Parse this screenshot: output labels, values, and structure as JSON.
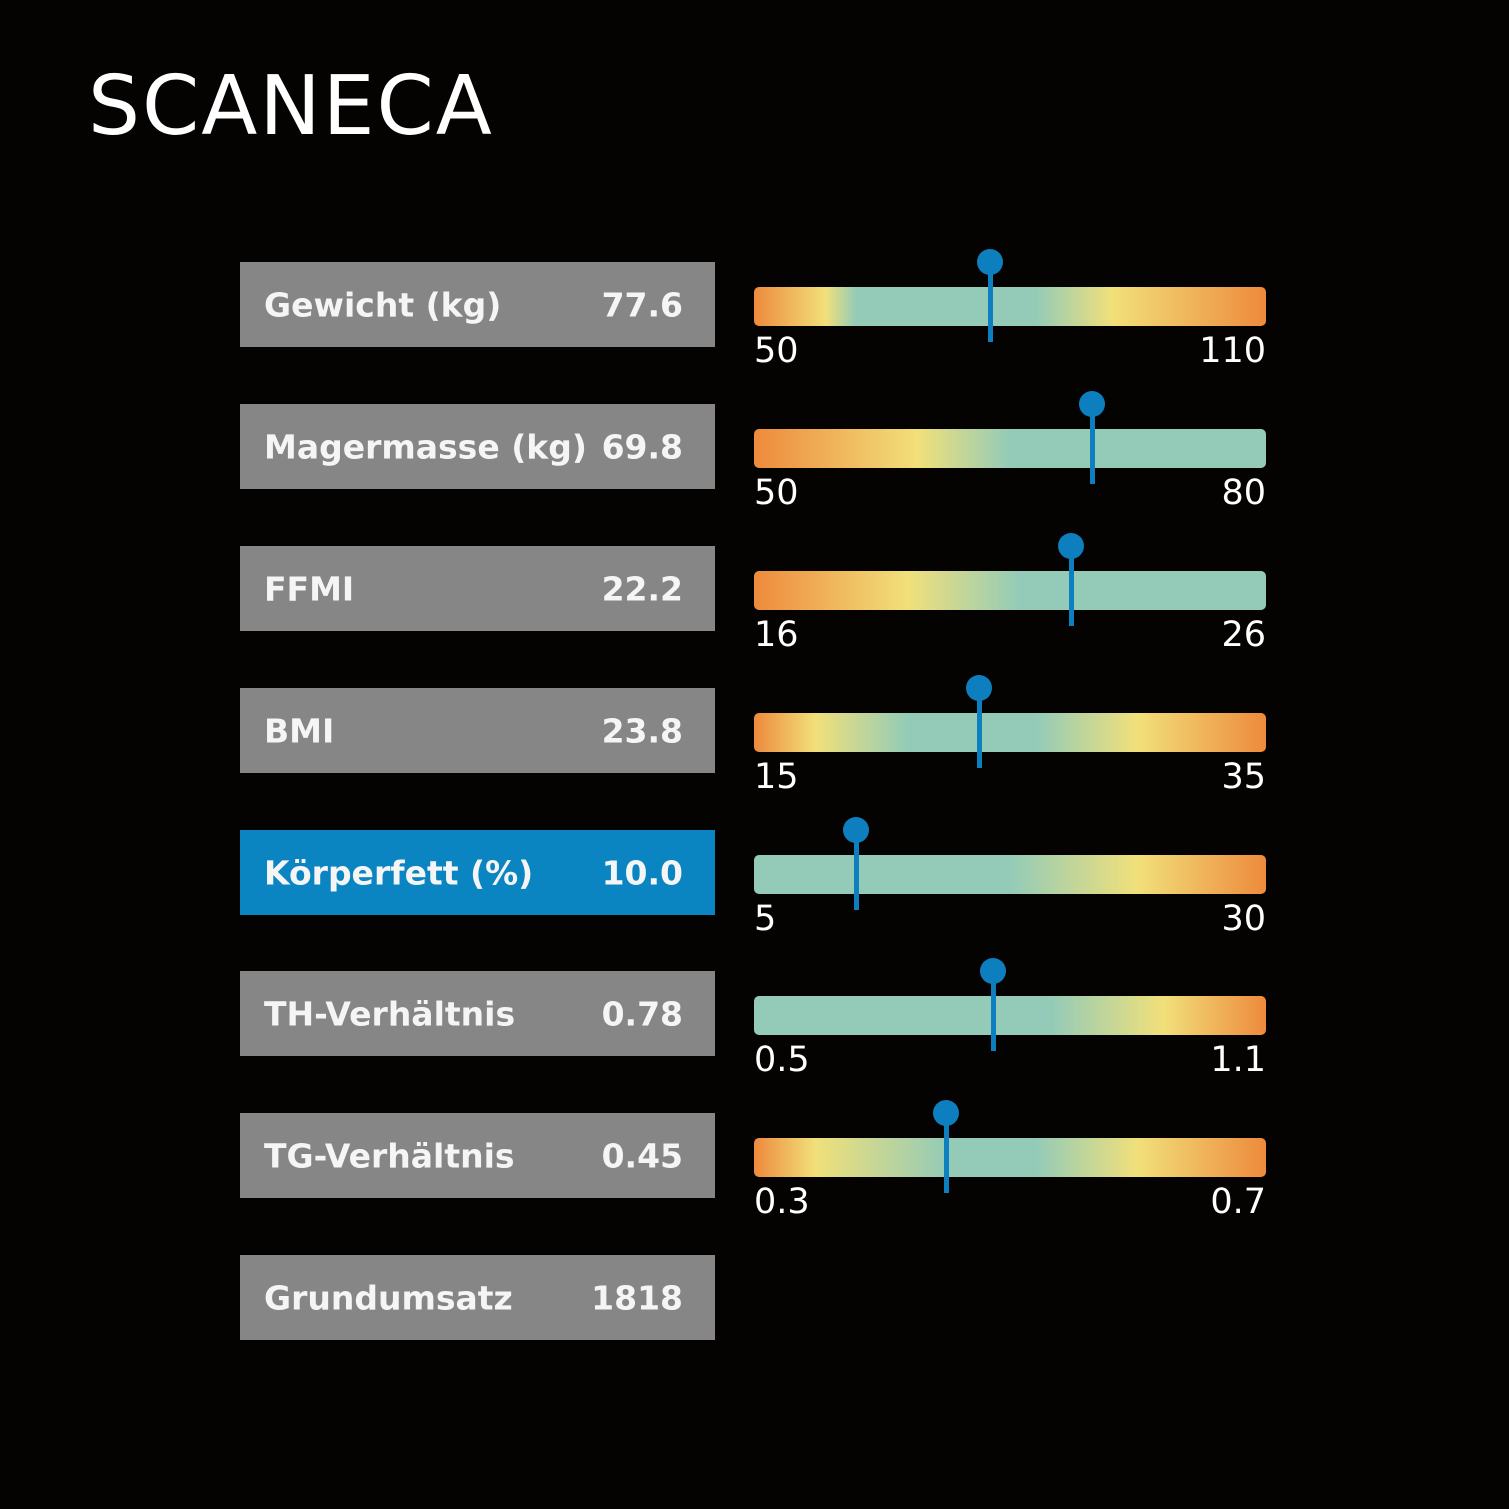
{
  "brand": {
    "logo_text": "SCANECA"
  },
  "colors": {
    "background": "#050302",
    "box_gray": "#878686",
    "box_highlight": "#0b84c2",
    "pin": "#0d7fbf",
    "orange": "#ee8a3c",
    "yellow": "#f1e07a",
    "teal": "#93cbb8"
  },
  "metrics": [
    {
      "label": "Gewicht (kg)",
      "value": "77.6",
      "highlight": false,
      "gauge": {
        "min": 50,
        "max": 110,
        "min_label": "50",
        "max_label": "110",
        "marker": 77.6,
        "stops": [
          [
            0,
            "orange"
          ],
          [
            0.14,
            "yellow"
          ],
          [
            0.2,
            "teal"
          ],
          [
            0.55,
            "teal"
          ],
          [
            0.7,
            "yellow"
          ],
          [
            1,
            "orange"
          ]
        ]
      }
    },
    {
      "label": "Magermasse (kg)",
      "value": "69.8",
      "highlight": false,
      "gauge": {
        "min": 50,
        "max": 80,
        "min_label": "50",
        "max_label": "80",
        "marker": 69.8,
        "stops": [
          [
            0,
            "orange"
          ],
          [
            0.32,
            "yellow"
          ],
          [
            0.5,
            "teal"
          ],
          [
            1,
            "teal"
          ]
        ]
      }
    },
    {
      "label": "FFMI",
      "value": "22.2",
      "highlight": false,
      "gauge": {
        "min": 16,
        "max": 26,
        "min_label": "16",
        "max_label": "26",
        "marker": 22.2,
        "stops": [
          [
            0,
            "orange"
          ],
          [
            0.3,
            "yellow"
          ],
          [
            0.52,
            "teal"
          ],
          [
            1,
            "teal"
          ]
        ]
      }
    },
    {
      "label": "BMI",
      "value": "23.8",
      "highlight": false,
      "gauge": {
        "min": 15,
        "max": 35,
        "min_label": "15",
        "max_label": "35",
        "marker": 23.8,
        "stops": [
          [
            0,
            "orange"
          ],
          [
            0.12,
            "yellow"
          ],
          [
            0.3,
            "teal"
          ],
          [
            0.55,
            "teal"
          ],
          [
            0.75,
            "yellow"
          ],
          [
            1,
            "orange"
          ]
        ]
      }
    },
    {
      "label": "Körperfett (%)",
      "value": "10.0",
      "highlight": true,
      "gauge": {
        "min": 5,
        "max": 30,
        "min_label": "5",
        "max_label": "30",
        "marker": 10.0,
        "stops": [
          [
            0,
            "teal"
          ],
          [
            0.5,
            "teal"
          ],
          [
            0.75,
            "yellow"
          ],
          [
            1,
            "orange"
          ]
        ]
      }
    },
    {
      "label": "TH-Verhältnis",
      "value": "0.78",
      "highlight": false,
      "gauge": {
        "min": 0.5,
        "max": 1.1,
        "min_label": "0.5",
        "max_label": "1.1",
        "marker": 0.78,
        "stops": [
          [
            0,
            "teal"
          ],
          [
            0.58,
            "teal"
          ],
          [
            0.8,
            "yellow"
          ],
          [
            1,
            "orange"
          ]
        ]
      }
    },
    {
      "label": "TG-Verhältnis",
      "value": "0.45",
      "highlight": false,
      "gauge": {
        "min": 0.3,
        "max": 0.7,
        "min_label": "0.3",
        "max_label": "0.7",
        "marker": 0.45,
        "stops": [
          [
            0,
            "orange"
          ],
          [
            0.12,
            "yellow"
          ],
          [
            0.38,
            "teal"
          ],
          [
            0.55,
            "teal"
          ],
          [
            0.75,
            "yellow"
          ],
          [
            1,
            "orange"
          ]
        ]
      }
    },
    {
      "label": "Grundumsatz",
      "value": "1818",
      "highlight": false,
      "gauge": null
    }
  ]
}
